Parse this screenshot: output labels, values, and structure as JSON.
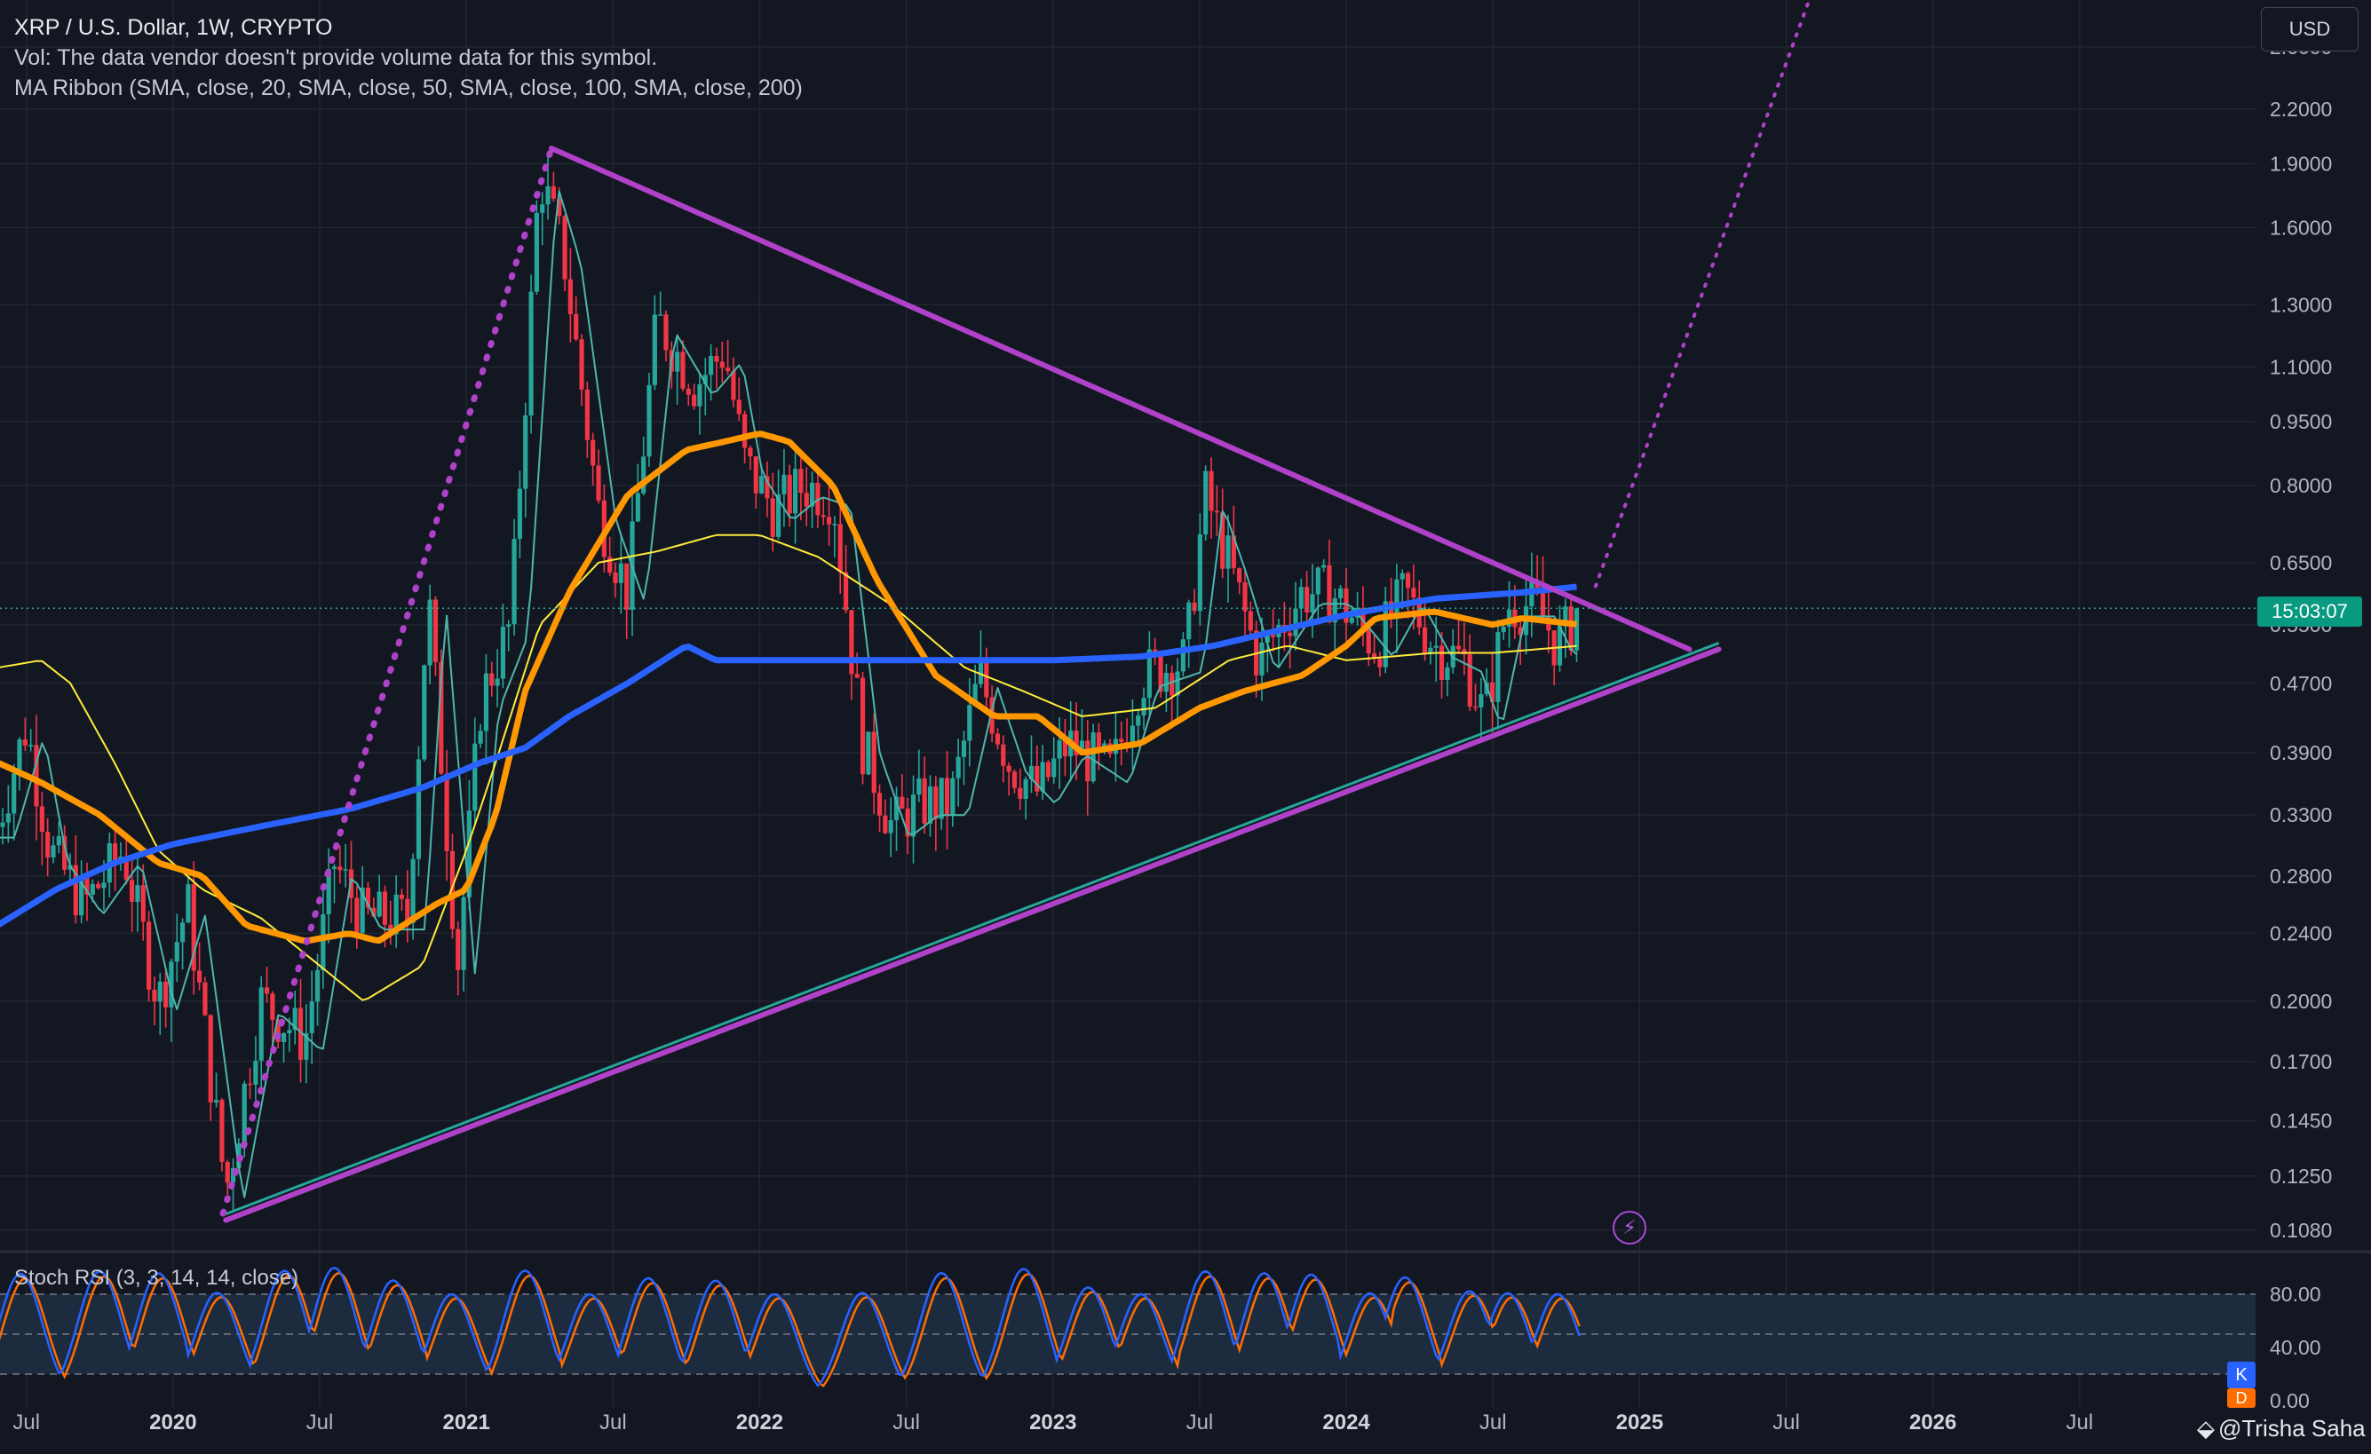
{
  "legend": {
    "symbol": "XRP / U.S. Dollar, 1W, CRYPTO",
    "volume_note": "Vol: The data vendor doesn't provide volume data for this symbol.",
    "ma_ribbon": "MA Ribbon (SMA, close, 20, SMA, close, 50, SMA, close, 100, SMA, close, 200)"
  },
  "currency_button": "USD",
  "countdown": "15:03:07",
  "stoch_label": "Stoch RSI (3, 3, 14, 14, close)",
  "stoch_badges": {
    "k": "K",
    "d": "D"
  },
  "watermark": {
    "logo": "⬙",
    "author": "@Trisha Saha"
  },
  "alert_icon": "lightning-alert-icon",
  "colors": {
    "background": "#131722",
    "grid": "#222631",
    "up": "#26a69a",
    "down": "#f23645",
    "ma20": "#4db6ac",
    "ma50": "#ffeb3b",
    "ma100": "#ff9800",
    "ma200": "#2962ff",
    "trendline": "#b042c9",
    "support": "#26a69a",
    "stoch_k": "#2962ff",
    "stoch_d": "#ff6d00",
    "stoch_band": "#1d2b3f"
  },
  "chart_data": [
    {
      "type": "candlestick",
      "title": "XRP / U.S. Dollar, 1W, CRYPTO",
      "y_scale": "log",
      "y_ticks": [
        2.6,
        2.2,
        1.9,
        1.6,
        1.3,
        1.1,
        0.95,
        0.8,
        0.65,
        0.55,
        0.47,
        0.39,
        0.33,
        0.28,
        0.24,
        0.2,
        0.17,
        0.145,
        0.125,
        0.108
      ],
      "y_tick_labels": [
        "2.6000",
        "2.2000",
        "1.9000",
        "1.6000",
        "1.3000",
        "1.1000",
        "0.9500",
        "0.8000",
        "0.6500",
        "0.5500",
        "0.4700",
        "0.3900",
        "0.3300",
        "0.2800",
        "0.2400",
        "0.2000",
        "0.1700",
        "0.1450",
        "0.1250",
        "0.1080"
      ],
      "x_ticks": [
        2019.5,
        2020,
        2020.5,
        2021,
        2021.5,
        2022,
        2022.5,
        2023,
        2023.5,
        2024,
        2024.5,
        2025,
        2025.5,
        2026,
        2026.5
      ],
      "x_tick_labels": [
        "Jul",
        "2020",
        "Jul",
        "2021",
        "Jul",
        "2022",
        "Jul",
        "2023",
        "Jul",
        "2024",
        "Jul",
        "2025",
        "Jul",
        "2026",
        "Jul"
      ],
      "x_range": [
        2019.41,
        2027.1
      ],
      "y_range": [
        0.102,
        2.95
      ],
      "last_price": 0.575,
      "price_anchors": [
        [
          2019.4,
          0.32
        ],
        [
          2019.5,
          0.42
        ],
        [
          2019.58,
          0.3
        ],
        [
          2019.7,
          0.26
        ],
        [
          2019.83,
          0.3
        ],
        [
          2019.95,
          0.2
        ],
        [
          2020.05,
          0.26
        ],
        [
          2020.18,
          0.12
        ],
        [
          2020.3,
          0.2
        ],
        [
          2020.45,
          0.18
        ],
        [
          2020.55,
          0.29
        ],
        [
          2020.65,
          0.25
        ],
        [
          2020.8,
          0.25
        ],
        [
          2020.87,
          0.6
        ],
        [
          2020.97,
          0.22
        ],
        [
          2021.05,
          0.45
        ],
        [
          2021.15,
          0.55
        ],
        [
          2021.25,
          1.85
        ],
        [
          2021.33,
          1.5
        ],
        [
          2021.45,
          0.75
        ],
        [
          2021.55,
          0.6
        ],
        [
          2021.65,
          1.25
        ],
        [
          2021.78,
          1.05
        ],
        [
          2021.88,
          1.15
        ],
        [
          2021.95,
          0.85
        ],
        [
          2022.05,
          0.75
        ],
        [
          2022.15,
          0.8
        ],
        [
          2022.25,
          0.78
        ],
        [
          2022.35,
          0.4
        ],
        [
          2022.45,
          0.32
        ],
        [
          2022.55,
          0.34
        ],
        [
          2022.65,
          0.34
        ],
        [
          2022.75,
          0.48
        ],
        [
          2022.85,
          0.38
        ],
        [
          2022.95,
          0.35
        ],
        [
          2023.05,
          0.4
        ],
        [
          2023.2,
          0.37
        ],
        [
          2023.3,
          0.48
        ],
        [
          2023.45,
          0.5
        ],
        [
          2023.52,
          0.78
        ],
        [
          2023.6,
          0.65
        ],
        [
          2023.7,
          0.5
        ],
        [
          2023.85,
          0.6
        ],
        [
          2023.95,
          0.6
        ],
        [
          2024.1,
          0.52
        ],
        [
          2024.2,
          0.6
        ],
        [
          2024.3,
          0.52
        ],
        [
          2024.4,
          0.5
        ],
        [
          2024.47,
          0.43
        ],
        [
          2024.55,
          0.58
        ],
        [
          2024.65,
          0.58
        ],
        [
          2024.72,
          0.52
        ],
        [
          2024.8,
          0.575
        ]
      ],
      "ma_ribbon": [
        {
          "name": "SMA 20",
          "length": 20
        },
        {
          "name": "SMA 50",
          "length": 50
        },
        {
          "name": "SMA 100",
          "length": 100
        },
        {
          "name": "SMA 200",
          "length": 200
        }
      ],
      "ma200_anchors": [
        [
          2019.4,
          0.245
        ],
        [
          2019.6,
          0.27
        ],
        [
          2019.8,
          0.29
        ],
        [
          2020.0,
          0.305
        ],
        [
          2020.3,
          0.32
        ],
        [
          2020.6,
          0.335
        ],
        [
          2020.85,
          0.355
        ],
        [
          2021.05,
          0.38
        ],
        [
          2021.2,
          0.395
        ],
        [
          2021.35,
          0.43
        ],
        [
          2021.55,
          0.47
        ],
        [
          2021.75,
          0.52
        ],
        [
          2021.85,
          0.5
        ],
        [
          2022.0,
          0.5
        ],
        [
          2022.5,
          0.5
        ],
        [
          2023.0,
          0.5
        ],
        [
          2023.3,
          0.505
        ],
        [
          2023.55,
          0.52
        ],
        [
          2023.8,
          0.545
        ],
        [
          2024.0,
          0.565
        ],
        [
          2024.3,
          0.59
        ],
        [
          2024.6,
          0.6
        ],
        [
          2024.8,
          0.61
        ]
      ],
      "ma100_anchors": [
        [
          2019.4,
          0.38
        ],
        [
          2019.55,
          0.36
        ],
        [
          2019.75,
          0.33
        ],
        [
          2019.95,
          0.29
        ],
        [
          2020.1,
          0.28
        ],
        [
          2020.25,
          0.245
        ],
        [
          2020.45,
          0.235
        ],
        [
          2020.6,
          0.24
        ],
        [
          2020.7,
          0.235
        ],
        [
          2020.9,
          0.26
        ],
        [
          2021.0,
          0.27
        ],
        [
          2021.1,
          0.33
        ],
        [
          2021.2,
          0.46
        ],
        [
          2021.35,
          0.6
        ],
        [
          2021.55,
          0.78
        ],
        [
          2021.75,
          0.88
        ],
        [
          2021.88,
          0.9
        ],
        [
          2022.0,
          0.92
        ],
        [
          2022.1,
          0.9
        ],
        [
          2022.25,
          0.8
        ],
        [
          2022.4,
          0.62
        ],
        [
          2022.6,
          0.48
        ],
        [
          2022.8,
          0.43
        ],
        [
          2022.95,
          0.43
        ],
        [
          2023.1,
          0.39
        ],
        [
          2023.3,
          0.4
        ],
        [
          2023.5,
          0.44
        ],
        [
          2023.65,
          0.46
        ],
        [
          2023.85,
          0.48
        ],
        [
          2024.0,
          0.52
        ],
        [
          2024.1,
          0.56
        ],
        [
          2024.3,
          0.57
        ],
        [
          2024.5,
          0.55
        ],
        [
          2024.6,
          0.56
        ],
        [
          2024.8,
          0.55
        ]
      ],
      "ma50_anchors": [
        [
          2019.4,
          0.49
        ],
        [
          2019.55,
          0.5
        ],
        [
          2019.65,
          0.47
        ],
        [
          2019.8,
          0.38
        ],
        [
          2019.95,
          0.3
        ],
        [
          2020.1,
          0.27
        ],
        [
          2020.3,
          0.25
        ],
        [
          2020.5,
          0.22
        ],
        [
          2020.65,
          0.2
        ],
        [
          2020.85,
          0.22
        ],
        [
          2021.0,
          0.3
        ],
        [
          2021.1,
          0.38
        ],
        [
          2021.25,
          0.55
        ],
        [
          2021.45,
          0.65
        ],
        [
          2021.65,
          0.67
        ],
        [
          2021.85,
          0.7
        ],
        [
          2022.0,
          0.7
        ],
        [
          2022.2,
          0.66
        ],
        [
          2022.45,
          0.58
        ],
        [
          2022.7,
          0.49
        ],
        [
          2022.9,
          0.46
        ],
        [
          2023.1,
          0.43
        ],
        [
          2023.35,
          0.44
        ],
        [
          2023.6,
          0.5
        ],
        [
          2023.8,
          0.52
        ],
        [
          2024.0,
          0.5
        ],
        [
          2024.3,
          0.51
        ],
        [
          2024.5,
          0.51
        ],
        [
          2024.8,
          0.52
        ]
      ],
      "trendlines": [
        {
          "name": "upper-resistance",
          "from": [
            2021.29,
            1.98
          ],
          "to": [
            2025.17,
            0.515
          ]
        },
        {
          "name": "lower-support",
          "from": [
            2020.18,
            0.111
          ],
          "to": [
            2025.27,
            0.515
          ]
        },
        {
          "name": "rally-2020",
          "from": [
            2020.17,
            0.113
          ],
          "to": [
            2021.29,
            1.98
          ],
          "style": "dotted"
        },
        {
          "name": "projection",
          "from": [
            2024.85,
            0.61
          ],
          "to": [
            2025.63,
            3.3
          ],
          "style": "dotted"
        }
      ]
    },
    {
      "type": "line",
      "title": "Stoch RSI (3, 3, 14, 14, close)",
      "y_ticks": [
        80,
        40,
        0
      ],
      "y_tick_labels": [
        "80.00",
        "40.00",
        "0.00"
      ],
      "bands": [
        20,
        50,
        80
      ],
      "series": [
        {
          "name": "K",
          "peaks": [
            2019.48,
            2019.75,
            2019.95,
            2020.15,
            2020.38,
            2020.55,
            2020.75,
            2020.95,
            2021.2,
            2021.42,
            2021.62,
            2021.85,
            2022.05,
            2022.35,
            2022.62,
            2022.9,
            2023.12,
            2023.3,
            2023.52,
            2023.72,
            2023.88,
            2024.08,
            2024.2,
            2024.42,
            2024.55,
            2024.72
          ]
        },
        {
          "name": "D",
          "lag": 0.015
        }
      ]
    }
  ]
}
